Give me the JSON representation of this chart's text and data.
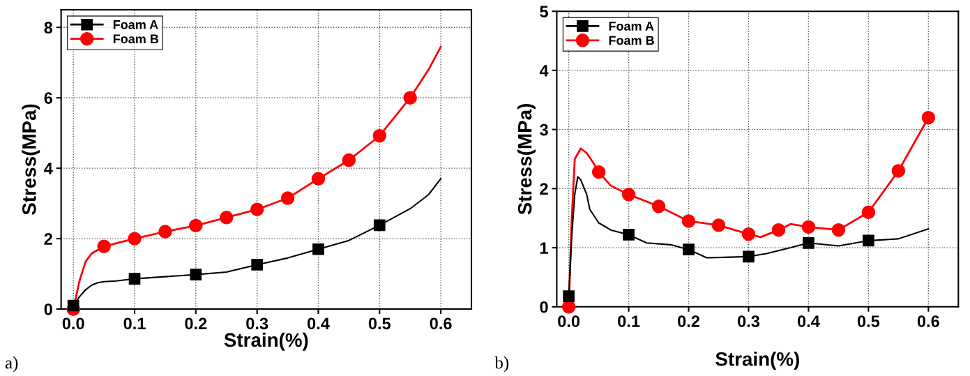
{
  "chart_data": [
    {
      "type": "line",
      "xlabel": "Strain(%)",
      "ylabel": "Stress(MPa)",
      "annotations": [
        "a)"
      ],
      "xlim": [
        -0.02,
        0.65
      ],
      "ylim": [
        0,
        8.5
      ],
      "xticks": [
        {
          "value": 0,
          "label": "0.0"
        },
        0.1,
        0.2,
        0.3,
        0.4,
        0.5,
        0.6
      ],
      "yticks": [
        0,
        2,
        4,
        6,
        8
      ],
      "grid": true,
      "legend": "top left",
      "line_style": "solid",
      "series": [
        {
          "name": "Foam A",
          "color": "#000000",
          "marker": "none",
          "x": [
            0,
            0.01,
            0.02,
            0.03,
            0.04,
            0.05,
            0.07,
            0.1,
            0.15,
            0.2,
            0.25,
            0.3,
            0.35,
            0.4,
            0.45,
            0.5,
            0.55,
            0.58,
            0.6
          ],
          "values": [
            0.1,
            0.35,
            0.55,
            0.68,
            0.75,
            0.78,
            0.8,
            0.86,
            0.92,
            0.98,
            1.05,
            1.26,
            1.45,
            1.7,
            1.95,
            2.38,
            2.85,
            3.25,
            3.7
          ]
        },
        {
          "type": "scatter",
          "color": "#000000",
          "marker": "square",
          "x": [
            0,
            0.1,
            0.2,
            0.3,
            0.4,
            0.5
          ],
          "values": [
            0.1,
            0.86,
            0.98,
            1.26,
            1.7,
            2.38
          ]
        },
        {
          "name": "Foam B",
          "color": "#ff0000",
          "marker": "none",
          "x": [
            0,
            0.01,
            0.02,
            0.03,
            0.05,
            0.1,
            0.15,
            0.2,
            0.25,
            0.3,
            0.35,
            0.4,
            0.45,
            0.5,
            0.55,
            0.58,
            0.6
          ],
          "values": [
            0,
            0.8,
            1.35,
            1.58,
            1.78,
            2.0,
            2.2,
            2.37,
            2.6,
            2.83,
            3.15,
            3.7,
            4.23,
            4.92,
            6.0,
            6.8,
            7.45
          ]
        },
        {
          "type": "scatter",
          "color": "#ff0000",
          "marker": "circle",
          "x": [
            0,
            0.05,
            0.1,
            0.15,
            0.2,
            0.25,
            0.3,
            0.35,
            0.4,
            0.45,
            0.5,
            0.55
          ],
          "values": [
            0,
            1.78,
            2.0,
            2.2,
            2.37,
            2.6,
            2.83,
            3.15,
            3.7,
            4.23,
            4.92,
            6.0
          ]
        }
      ]
    },
    {
      "type": "line",
      "xlabel": "Strain(%)",
      "ylabel": "Stress(MPa)",
      "annotations": [
        "b)"
      ],
      "xlim": [
        -0.02,
        0.65
      ],
      "ylim": [
        0,
        5
      ],
      "xticks": [
        {
          "value": 0,
          "label": "0.0"
        },
        0.1,
        0.2,
        0.3,
        0.4,
        0.5,
        0.6
      ],
      "yticks": [
        0,
        1,
        2,
        3,
        4,
        5
      ],
      "grid": true,
      "legend": "top left",
      "line_style": "solid",
      "series": [
        {
          "name": "Foam A",
          "color": "#000000",
          "marker": "none",
          "x": [
            0,
            0.005,
            0.01,
            0.015,
            0.02,
            0.03,
            0.035,
            0.05,
            0.07,
            0.1,
            0.13,
            0.17,
            0.2,
            0.23,
            0.27,
            0.3,
            0.33,
            0.37,
            0.4,
            0.45,
            0.5,
            0.55,
            0.6
          ],
          "values": [
            0.18,
            1.2,
            1.9,
            2.2,
            2.15,
            1.9,
            1.65,
            1.42,
            1.3,
            1.22,
            1.08,
            1.05,
            0.97,
            0.83,
            0.84,
            0.85,
            0.9,
            1.0,
            1.08,
            1.03,
            1.12,
            1.15,
            1.32
          ]
        },
        {
          "type": "scatter",
          "color": "#000000",
          "marker": "square",
          "x": [
            0,
            0.1,
            0.2,
            0.3,
            0.4,
            0.5
          ],
          "values": [
            0.18,
            1.22,
            0.97,
            0.85,
            1.08,
            1.12
          ]
        },
        {
          "name": "Foam B",
          "color": "#ff0000",
          "marker": "none",
          "x": [
            0,
            0.005,
            0.01,
            0.02,
            0.03,
            0.04,
            0.05,
            0.07,
            0.1,
            0.15,
            0.2,
            0.25,
            0.3,
            0.32,
            0.35,
            0.37,
            0.4,
            0.45,
            0.5,
            0.55,
            0.6
          ],
          "values": [
            0,
            1.5,
            2.5,
            2.68,
            2.6,
            2.45,
            2.28,
            2.05,
            1.9,
            1.7,
            1.45,
            1.38,
            1.23,
            1.18,
            1.3,
            1.4,
            1.35,
            1.3,
            1.6,
            2.3,
            3.2
          ]
        },
        {
          "type": "scatter",
          "color": "#ff0000",
          "marker": "circle",
          "x": [
            0,
            0.05,
            0.1,
            0.15,
            0.2,
            0.25,
            0.3,
            0.35,
            0.4,
            0.45,
            0.5,
            0.55,
            0.6
          ],
          "values": [
            0,
            2.28,
            1.9,
            1.7,
            1.45,
            1.38,
            1.23,
            1.3,
            1.35,
            1.3,
            1.6,
            2.3,
            3.2
          ]
        }
      ]
    }
  ]
}
